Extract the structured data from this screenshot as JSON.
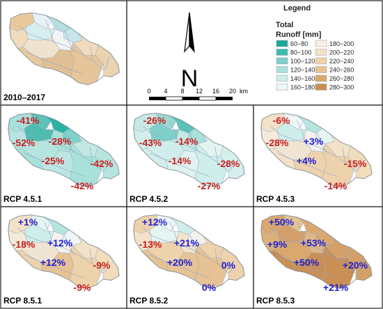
{
  "baseline_panel": {
    "title": "2010–2017",
    "fills": [
      "#e9c99c",
      "#f0dbbd",
      "#e7f2f5",
      "#b6dde0",
      "#d7eef0",
      "#c7e6ea",
      "#f3f3f6",
      "#efe2cf",
      "#e9c99c",
      "#e1bf94",
      "#f0dbbd",
      "#e6c59a",
      "#ead3af"
    ]
  },
  "compass": {
    "label": "N"
  },
  "scale_bar": {
    "ticks": [
      "0",
      "4",
      "8",
      "12",
      "16",
      "20"
    ],
    "unit": "km"
  },
  "legend": {
    "title": "Legend",
    "subtitle_line1": "Total",
    "subtitle_line2": "Runoff [mm]",
    "items": [
      {
        "label": "60−80",
        "color": "#1ba89a"
      },
      {
        "label": "80−100",
        "color": "#3dbbb0"
      },
      {
        "label": "100−120",
        "color": "#7fd0c8"
      },
      {
        "label": "120−140",
        "color": "#a8e0da"
      },
      {
        "label": "140−160",
        "color": "#cfeeeb"
      },
      {
        "label": "160−180",
        "color": "#eef6f7"
      },
      {
        "label": "180−200",
        "color": "#f8f0e6"
      },
      {
        "label": "200−220",
        "color": "#f3e2c8"
      },
      {
        "label": "220−240",
        "color": "#eed2ac"
      },
      {
        "label": "240−260",
        "color": "#e6c294"
      },
      {
        "label": "260−280",
        "color": "#d9a86e"
      },
      {
        "label": "280−300",
        "color": "#c98f55"
      }
    ]
  },
  "scenarios": [
    {
      "title": "RCP 4.5.1",
      "fills": [
        "#a8e0da",
        "#b6e4df",
        "#5cc2b5",
        "#2bb2a5",
        "#4ebdb0",
        "#7fd0c8",
        "#a8e0da",
        "#b6e4df",
        "#a8e0da",
        "#bde6e2",
        "#c3e8e4",
        "#a8e0da",
        "#b6e4df"
      ],
      "labels": [
        {
          "text": "-41%",
          "color": "#c81e1e",
          "pos": "p0"
        },
        {
          "text": "-52%",
          "color": "#c81e1e",
          "pos": "p1"
        },
        {
          "text": "-28%",
          "color": "#c81e1e",
          "pos": "p2"
        },
        {
          "text": "-25%",
          "color": "#c81e1e",
          "pos": "p3"
        },
        {
          "text": "-42%",
          "color": "#c81e1e",
          "pos": "p4"
        },
        {
          "text": "-42%",
          "color": "#c81e1e",
          "pos": "p5"
        }
      ]
    },
    {
      "title": "RCP 4.5.2",
      "fills": [
        "#c7e8e4",
        "#d3eeea",
        "#9ad9d1",
        "#5cc2b5",
        "#7fd0c8",
        "#a8e0da",
        "#c7e8e4",
        "#cfeeeb",
        "#d3eeea",
        "#dff2f0",
        "#e3f3f1",
        "#cfeeeb",
        "#d7efec"
      ],
      "labels": [
        {
          "text": "-26%",
          "color": "#c81e1e",
          "pos": "p0"
        },
        {
          "text": "-43%",
          "color": "#c81e1e",
          "pos": "p1"
        },
        {
          "text": "-14%",
          "color": "#c81e1e",
          "pos": "p2"
        },
        {
          "text": "-14%",
          "color": "#c81e1e",
          "pos": "p3"
        },
        {
          "text": "-28%",
          "color": "#c81e1e",
          "pos": "p4"
        },
        {
          "text": "-27%",
          "color": "#c81e1e",
          "pos": "p5"
        }
      ]
    },
    {
      "title": "RCP 4.5.3",
      "fills": [
        "#f3e2c8",
        "#f4ead9",
        "#eef6f7",
        "#b6e4df",
        "#cfeeeb",
        "#e6f4f2",
        "#f5f2ee",
        "#f0e4d2",
        "#f3e2c8",
        "#eed2ac",
        "#f3e2c8",
        "#eed2ac",
        "#f1dcbc"
      ],
      "labels": [
        {
          "text": "-6%",
          "color": "#c81e1e",
          "pos": "p0"
        },
        {
          "text": "-28%",
          "color": "#c81e1e",
          "pos": "p1"
        },
        {
          "text": "+3%",
          "color": "#1f1fd6",
          "pos": "p2"
        },
        {
          "text": "+4%",
          "color": "#1f1fd6",
          "pos": "p3"
        },
        {
          "text": "-15%",
          "color": "#c81e1e",
          "pos": "p4"
        },
        {
          "text": "-14%",
          "color": "#c81e1e",
          "pos": "p5"
        }
      ]
    },
    {
      "title": "RCP 8.5.1",
      "fills": [
        "#f3e2c8",
        "#f4ead9",
        "#e6f4f2",
        "#b6e4df",
        "#cfeeeb",
        "#eef6f7",
        "#f5f2ee",
        "#f0e4d2",
        "#eed2ac",
        "#e6c294",
        "#f3e2c8",
        "#eed2ac",
        "#f1dcbc"
      ],
      "labels": [
        {
          "text": "+1%",
          "color": "#1f1fd6",
          "pos": "p0"
        },
        {
          "text": "-18%",
          "color": "#c81e1e",
          "pos": "p1"
        },
        {
          "text": "+12%",
          "color": "#1f1fd6",
          "pos": "p2"
        },
        {
          "text": "+12%",
          "color": "#1f1fd6",
          "pos": "p3"
        },
        {
          "text": "-9%",
          "color": "#c81e1e",
          "pos": "p4"
        },
        {
          "text": "-9%",
          "color": "#c81e1e",
          "pos": "p5"
        }
      ]
    },
    {
      "title": "RCP 8.5.2",
      "fills": [
        "#eed2ac",
        "#f3e2c8",
        "#eef6f7",
        "#cfeeeb",
        "#e6f4f2",
        "#f5f2ee",
        "#f3e2c8",
        "#eed2ac",
        "#e6c294",
        "#e6c294",
        "#eed2ac",
        "#e6c294",
        "#eed2ac"
      ],
      "labels": [
        {
          "text": "+12%",
          "color": "#1f1fd6",
          "pos": "p0"
        },
        {
          "text": "-13%",
          "color": "#c81e1e",
          "pos": "p1"
        },
        {
          "text": "+21%",
          "color": "#1f1fd6",
          "pos": "p2"
        },
        {
          "text": "+20%",
          "color": "#1f1fd6",
          "pos": "p3"
        },
        {
          "text": "0%",
          "color": "#1f1fd6",
          "pos": "p4"
        },
        {
          "text": "0%",
          "color": "#1f1fd6",
          "pos": "p5"
        }
      ]
    },
    {
      "title": "RCP 8.5.3",
      "fills": [
        "#d9a86e",
        "#dcb07a",
        "#e6c294",
        "#d9a86e",
        "#d4a068",
        "#d9a86e",
        "#e1b684",
        "#d9a86e",
        "#c98f55",
        "#c98f55",
        "#d4a068",
        "#c98f55",
        "#d4a068"
      ],
      "labels": [
        {
          "text": "+50%",
          "color": "#1f1fd6",
          "pos": "p0"
        },
        {
          "text": "+9%",
          "color": "#1f1fd6",
          "pos": "p1"
        },
        {
          "text": "+53%",
          "color": "#1f1fd6",
          "pos": "p2"
        },
        {
          "text": "+50%",
          "color": "#1f1fd6",
          "pos": "p3"
        },
        {
          "text": "+20%",
          "color": "#1f1fd6",
          "pos": "p4"
        },
        {
          "text": "+21%",
          "color": "#1f1fd6",
          "pos": "p5"
        }
      ]
    }
  ]
}
